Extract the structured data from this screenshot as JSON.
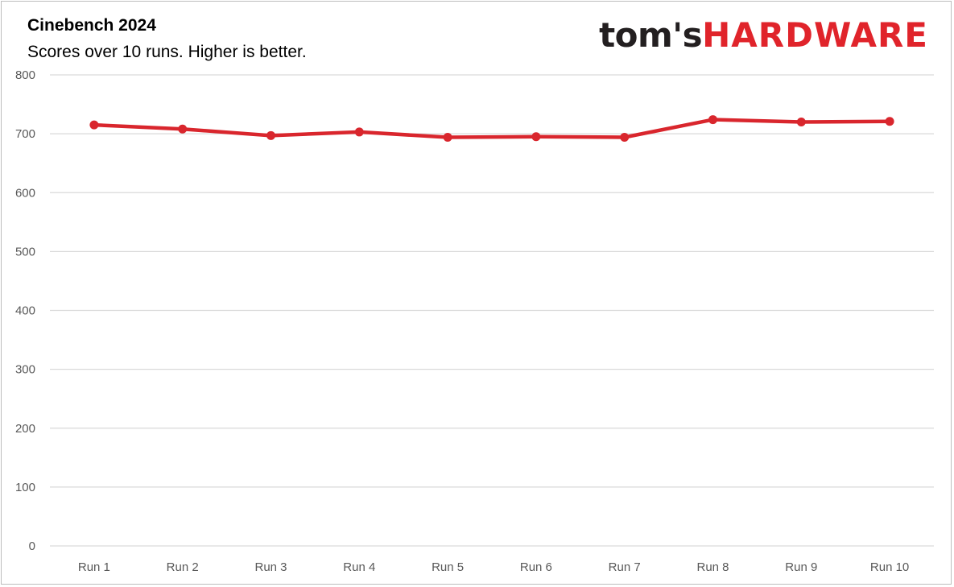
{
  "chart_data": {
    "type": "line",
    "title": "Cinebench 2024",
    "subtitle": "Scores over 10 runs. Higher is better.",
    "categories": [
      "Run 1",
      "Run 2",
      "Run 3",
      "Run 4",
      "Run 5",
      "Run 6",
      "Run 7",
      "Run 8",
      "Run 9",
      "Run 10"
    ],
    "series": [
      {
        "values": [
          715,
          708,
          697,
          703,
          694,
          695,
          694,
          724,
          720,
          721
        ],
        "color": "#d9262d"
      }
    ],
    "ylim": [
      0,
      800
    ],
    "yticks": [
      0,
      100,
      200,
      300,
      400,
      500,
      600,
      700,
      800
    ],
    "grid": true,
    "legend": "none"
  },
  "branding": {
    "logo_part1": "tom's",
    "logo_part2": "HARDWARE",
    "logo_color_dark": "#231f20",
    "logo_color_red": "#e0242b"
  }
}
